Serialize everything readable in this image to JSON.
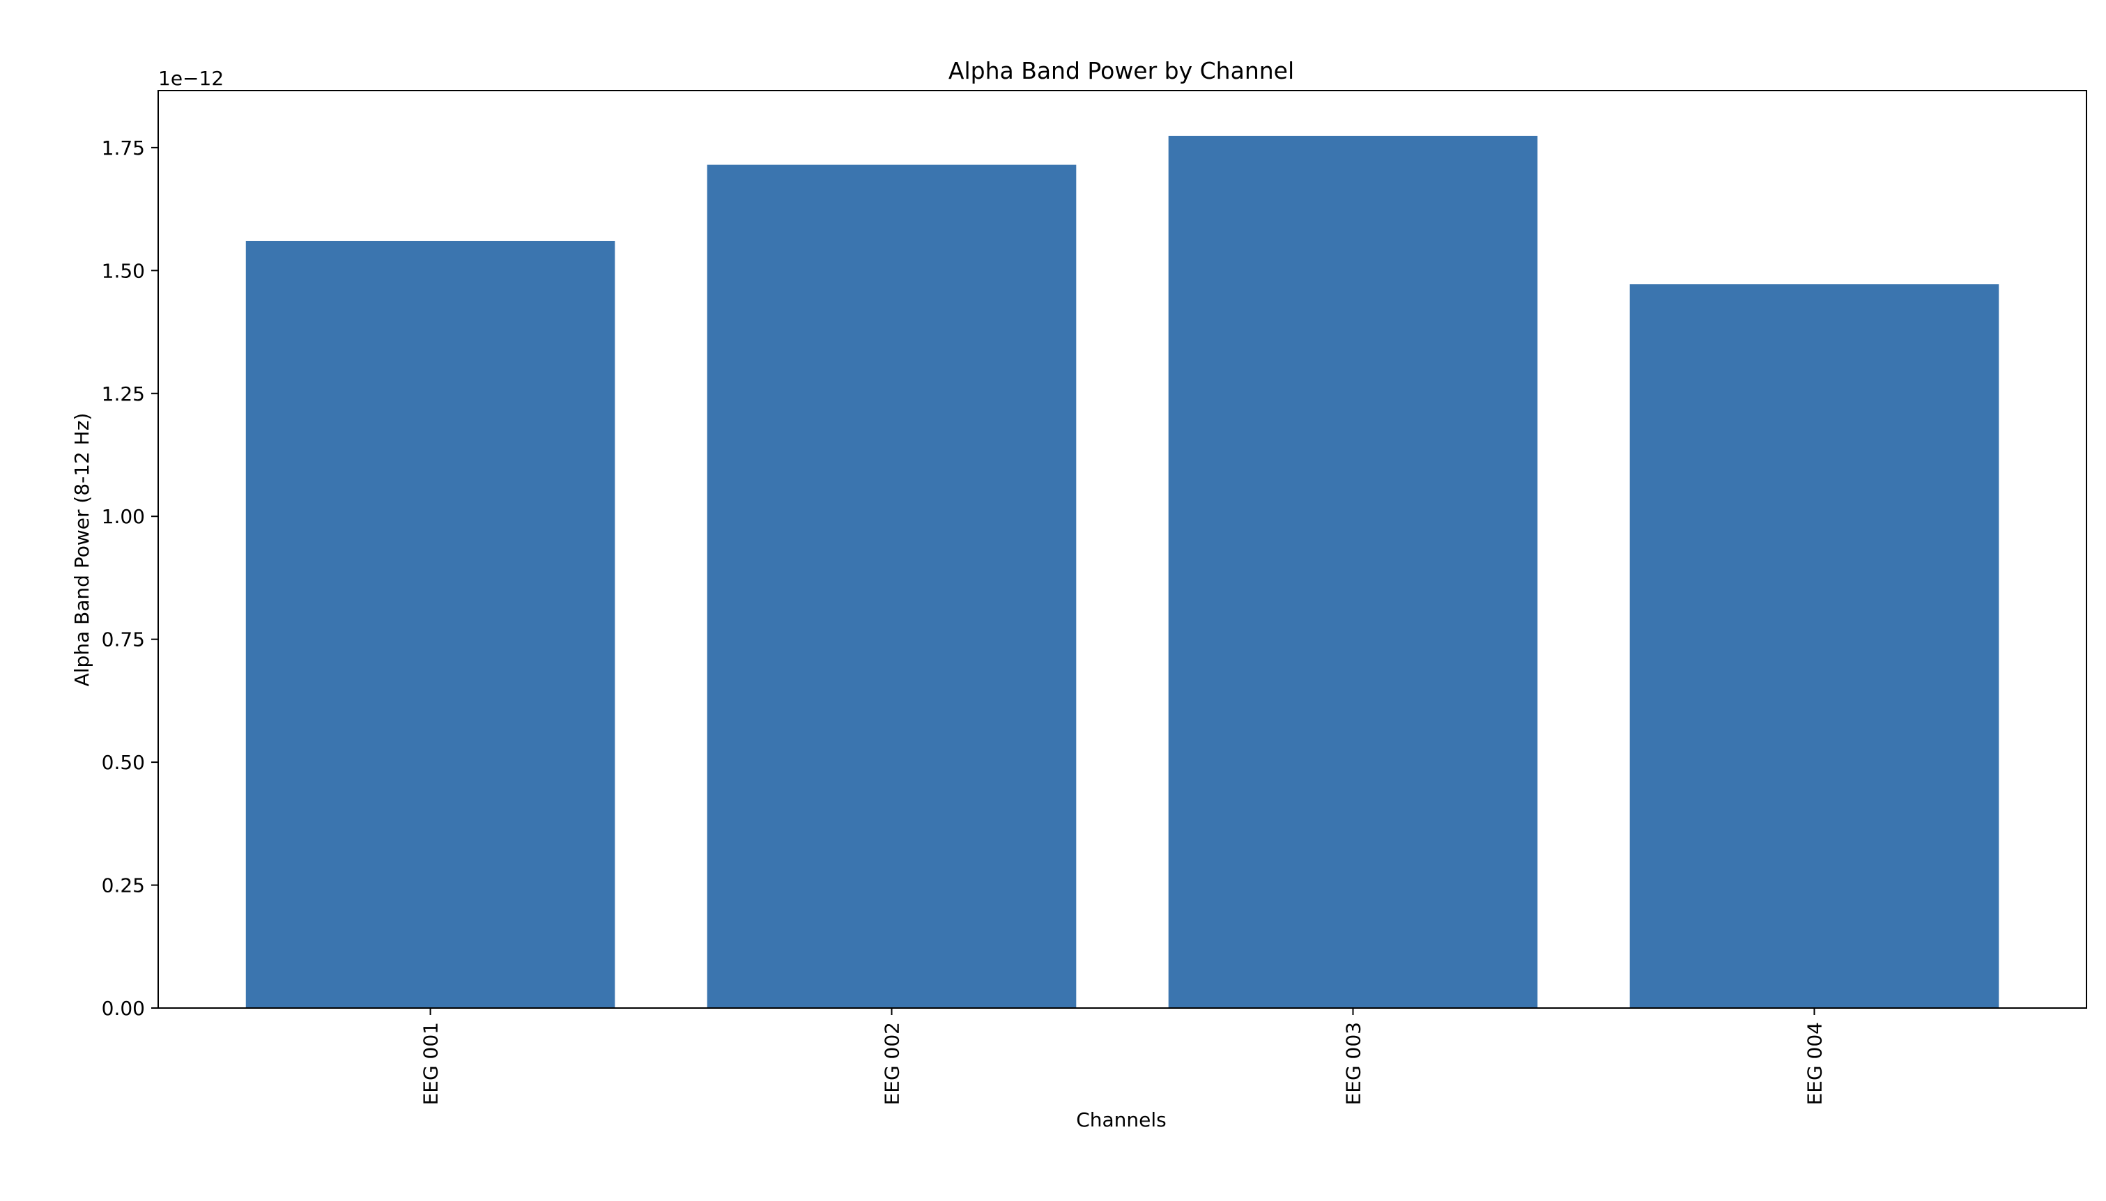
{
  "chart_data": {
    "type": "bar",
    "title": "Alpha Band Power by Channel",
    "xlabel": "Channels",
    "ylabel": "Alpha Band Power (8-12 Hz)",
    "offset_label": "1e−12",
    "scale": 1e-12,
    "categories": [
      "EEG 001",
      "EEG 002",
      "EEG 003",
      "EEG 004"
    ],
    "values": [
      1.56e-12,
      1.715e-12,
      1.774e-12,
      1.472e-12
    ],
    "ylim": [
      0,
      1.866e-12
    ],
    "yticks": [
      0,
      2.5e-13,
      5e-13,
      7.5e-13,
      1e-12,
      1.25e-12,
      1.5e-12,
      1.75e-12
    ],
    "ytick_labels": [
      "0.00",
      "0.25",
      "0.50",
      "0.75",
      "1.00",
      "1.25",
      "1.50",
      "1.75"
    ],
    "bar_color": "#3b75af",
    "grid": false,
    "legend": "none"
  }
}
